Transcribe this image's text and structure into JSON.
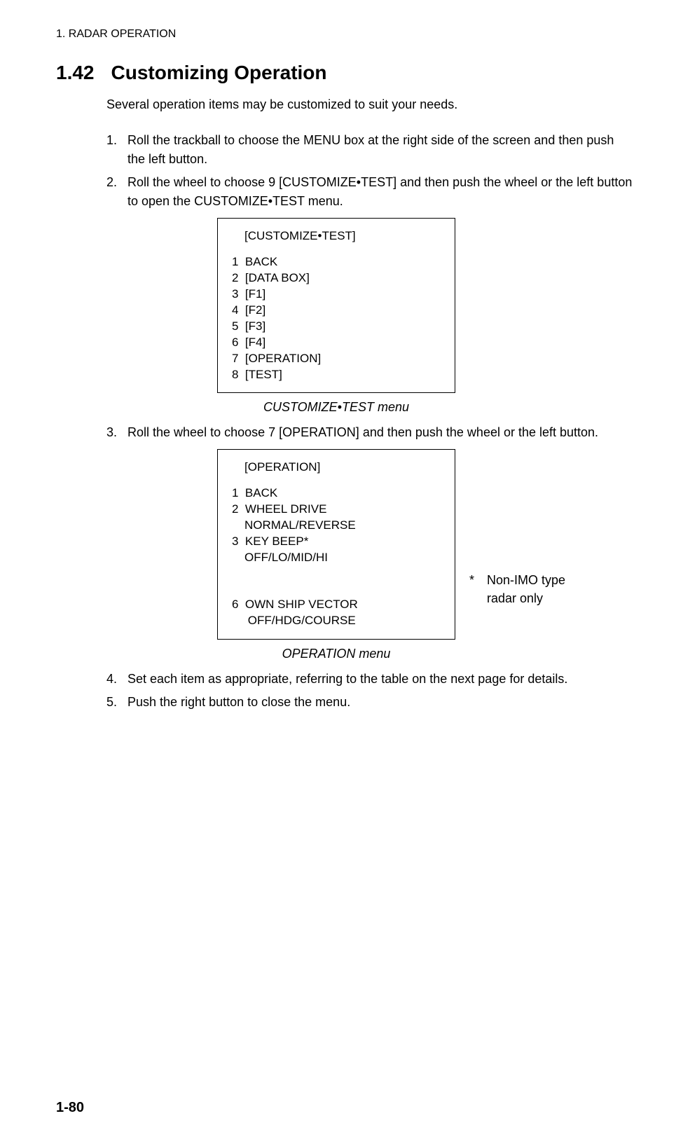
{
  "header": "1. RADAR OPERATION",
  "section": {
    "number": "1.42",
    "title": "Customizing Operation"
  },
  "intro": "Several operation items may be customized to suit your needs.",
  "steps": {
    "1": "Roll the trackball to choose the MENU box at the right side of the screen and then push the left button.",
    "2": "Roll the wheel to choose 9 [CUSTOMIZE•TEST] and then push the wheel or the left button to open the CUSTOMIZE•TEST menu.",
    "3": "Roll the wheel to choose 7 [OPERATION] and then push the wheel or the left button.",
    "4": "Set each item as appropriate, referring to the table on the next page for details.",
    "5": "Push the right button to close the menu."
  },
  "menu1": {
    "title": "[CUSTOMIZE•TEST]",
    "items": {
      "1": "1  BACK",
      "2": "2  [DATA BOX]",
      "3": "3  [F1]",
      "4": "4  [F2]",
      "5": "5  [F3]",
      "6": "6  [F4]",
      "7": "7  [OPERATION]",
      "8": "8  [TEST]"
    }
  },
  "caption1": "CUSTOMIZE•TEST menu",
  "menu2": {
    "title": "[OPERATION]",
    "item1": "1  BACK",
    "item2": "2  WHEEL DRIVE",
    "item2opt": "NORMAL/REVERSE",
    "item3": "3  KEY BEEP*",
    "item3opt": "OFF/LO/MID/HI",
    "item6": "6  OWN SHIP VECTOR",
    "item6opt": "OFF/HDG/COURSE"
  },
  "caption2": "OPERATION menu",
  "sidenote": {
    "star": "*",
    "line1": "Non-IMO type",
    "line2": "radar only"
  },
  "pagenum": "1-80"
}
